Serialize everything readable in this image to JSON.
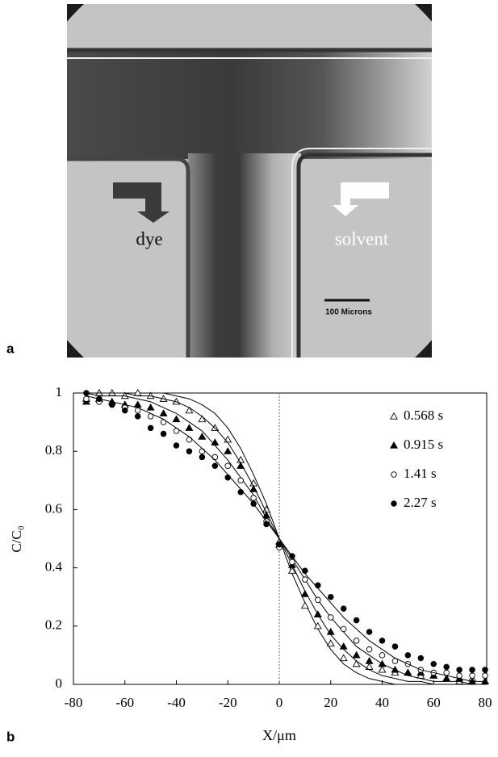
{
  "image": {
    "panel_label": "a",
    "dye_label": "dye",
    "solvent_label": "solvent",
    "scale_bar_label": "100 Microns"
  },
  "chart_data": {
    "type": "scatter",
    "panel_label": "b",
    "xlabel": "X/μm",
    "ylabel": "C/C₀",
    "xlim": [
      -80,
      80
    ],
    "ylim": [
      0,
      1
    ],
    "xticks": [
      -80,
      -60,
      -40,
      -20,
      0,
      20,
      40,
      60,
      80
    ],
    "yticks": [
      0,
      0.2,
      0.4,
      0.6,
      0.8,
      1
    ],
    "vline": 0,
    "x": [
      -75,
      -70,
      -65,
      -60,
      -55,
      -50,
      -45,
      -40,
      -35,
      -30,
      -25,
      -20,
      -15,
      -10,
      -5,
      0,
      5,
      10,
      15,
      20,
      25,
      30,
      35,
      40,
      45,
      50,
      55,
      60,
      65,
      70,
      75,
      80
    ],
    "series": [
      {
        "name": "0.568 s",
        "marker": "triangle-open",
        "color": "#000",
        "values": [
          0.98,
          1.0,
          1.0,
          0.99,
          1.0,
          0.99,
          0.98,
          0.97,
          0.94,
          0.91,
          0.88,
          0.84,
          0.77,
          0.69,
          0.6,
          0.49,
          0.39,
          0.27,
          0.2,
          0.14,
          0.09,
          0.07,
          0.06,
          0.05,
          0.04,
          0.04,
          0.03,
          0.03,
          0.02,
          0.01,
          0.02,
          0.01
        ],
        "fit": [
          1.0,
          1.0,
          1.0,
          1.0,
          1.0,
          1.0,
          1.0,
          0.99,
          0.98,
          0.96,
          0.93,
          0.88,
          0.81,
          0.72,
          0.62,
          0.5,
          0.38,
          0.28,
          0.19,
          0.12,
          0.07,
          0.04,
          0.02,
          0.01,
          0,
          0,
          0,
          0,
          0,
          0,
          0,
          0
        ]
      },
      {
        "name": "0.915 s",
        "marker": "triangle-filled",
        "color": "#000",
        "values": [
          0.97,
          0.98,
          0.97,
          0.96,
          0.96,
          0.95,
          0.93,
          0.91,
          0.88,
          0.85,
          0.83,
          0.8,
          0.75,
          0.67,
          0.58,
          0.48,
          0.41,
          0.31,
          0.24,
          0.18,
          0.13,
          0.1,
          0.08,
          0.07,
          0.05,
          0.04,
          0.04,
          0.03,
          0.02,
          0.02,
          0.01,
          0.01
        ],
        "fit": [
          1.0,
          1.0,
          1.0,
          1.0,
          0.99,
          0.99,
          0.98,
          0.97,
          0.95,
          0.92,
          0.88,
          0.83,
          0.76,
          0.68,
          0.59,
          0.5,
          0.41,
          0.32,
          0.24,
          0.17,
          0.12,
          0.08,
          0.05,
          0.03,
          0.02,
          0.01,
          0.01,
          0,
          0,
          0,
          0,
          0
        ]
      },
      {
        "name": "1.41 s",
        "marker": "circle-open",
        "color": "#000",
        "values": [
          0.98,
          0.97,
          0.96,
          0.95,
          0.94,
          0.92,
          0.9,
          0.87,
          0.84,
          0.8,
          0.78,
          0.75,
          0.7,
          0.64,
          0.56,
          0.47,
          0.42,
          0.36,
          0.29,
          0.23,
          0.19,
          0.15,
          0.12,
          0.1,
          0.08,
          0.07,
          0.05,
          0.04,
          0.04,
          0.03,
          0.03,
          0.03
        ],
        "fit": [
          1.0,
          0.99,
          0.99,
          0.99,
          0.98,
          0.97,
          0.95,
          0.93,
          0.9,
          0.87,
          0.82,
          0.77,
          0.71,
          0.65,
          0.57,
          0.5,
          0.43,
          0.36,
          0.29,
          0.23,
          0.18,
          0.13,
          0.1,
          0.07,
          0.05,
          0.03,
          0.02,
          0.01,
          0.01,
          0.01,
          0,
          0
        ]
      },
      {
        "name": "2.27 s",
        "marker": "circle-filled",
        "color": "#000",
        "values": [
          1.0,
          0.98,
          0.96,
          0.94,
          0.92,
          0.88,
          0.86,
          0.82,
          0.8,
          0.78,
          0.75,
          0.71,
          0.66,
          0.62,
          0.55,
          0.48,
          0.44,
          0.39,
          0.34,
          0.3,
          0.26,
          0.22,
          0.18,
          0.15,
          0.13,
          0.1,
          0.09,
          0.07,
          0.06,
          0.05,
          0.05,
          0.05
        ],
        "fit": [
          0.99,
          0.98,
          0.97,
          0.96,
          0.95,
          0.93,
          0.91,
          0.88,
          0.85,
          0.81,
          0.77,
          0.72,
          0.67,
          0.62,
          0.56,
          0.5,
          0.44,
          0.38,
          0.33,
          0.28,
          0.23,
          0.19,
          0.15,
          0.12,
          0.09,
          0.07,
          0.05,
          0.04,
          0.03,
          0.02,
          0.01,
          0.01
        ]
      }
    ],
    "legend": "upper right"
  }
}
